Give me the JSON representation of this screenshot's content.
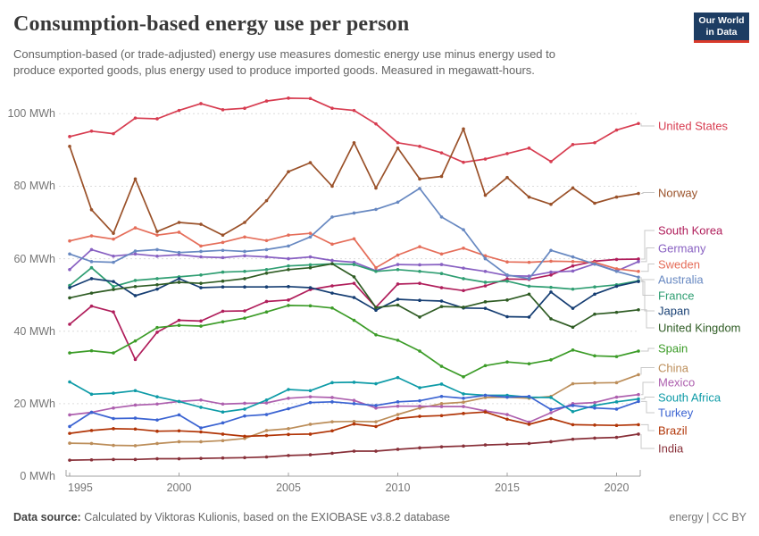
{
  "header": {
    "title": "Consumption-based energy use per person",
    "subtitle": "Consumption-based (or trade-adjusted) energy use measures domestic energy use minus energy used to produce exported goods, plus energy used to produce imported goods. Measured in megawatt-hours.",
    "logo": {
      "line1": "Our World",
      "line2": "in Data",
      "bg_color": "#1d3d63",
      "accent_color": "#d93a2b"
    }
  },
  "footer": {
    "datasource_label": "Data source:",
    "datasource_text": " Calculated by Viktoras Kulionis, based on the EXIOBASE v3.8.2 database",
    "right_text": "energy | CC BY"
  },
  "chart_data": {
    "type": "line",
    "title": "Consumption-based energy use per person",
    "unit": "MWh",
    "x": [
      1995,
      1996,
      1997,
      1998,
      1999,
      2000,
      2001,
      2002,
      2003,
      2004,
      2005,
      2006,
      2007,
      2008,
      2009,
      2010,
      2011,
      2012,
      2013,
      2014,
      2015,
      2016,
      2017,
      2018,
      2019,
      2020,
      2021
    ],
    "x_ticks": [
      1995,
      2000,
      2005,
      2010,
      2015,
      2020
    ],
    "y_ticks": [
      0,
      20,
      40,
      60,
      80,
      100
    ],
    "y_tick_suffix": " MWh",
    "ylim": [
      0,
      105
    ],
    "grid": "dashed-horizontal",
    "legend_position": "right-of-lines",
    "series": [
      {
        "name": "United States",
        "color": "#d73c50",
        "values": [
          93.7,
          95.2,
          94.5,
          98.8,
          98.6,
          100.9,
          102.8,
          101.1,
          101.5,
          103.5,
          104.3,
          104.2,
          101.5,
          100.9,
          97.2,
          92.0,
          91.0,
          89.2,
          86.6,
          87.5,
          89.0,
          90.5,
          86.8,
          91.5,
          92.0,
          95.5,
          97.3
        ]
      },
      {
        "name": "Norway",
        "color": "#9a5129",
        "values": [
          91.0,
          73.5,
          67.0,
          82.0,
          67.5,
          70.0,
          69.5,
          66.5,
          70.0,
          76.0,
          84.0,
          86.5,
          80.0,
          92.0,
          79.5,
          90.5,
          82.0,
          82.7,
          95.8,
          77.5,
          82.4,
          77.0,
          75.0,
          79.5,
          75.3,
          77.0,
          78.0
        ]
      },
      {
        "name": "South Korea",
        "color": "#b01e5b",
        "values": [
          41.9,
          46.9,
          45.3,
          32.2,
          39.7,
          43.0,
          42.8,
          45.5,
          45.6,
          48.2,
          48.6,
          51.5,
          52.5,
          53.2,
          46.6,
          53.0,
          53.2,
          52.0,
          51.2,
          52.5,
          54.4,
          54.3,
          55.5,
          58.0,
          59.3,
          59.8,
          59.9
        ]
      },
      {
        "name": "Germany",
        "color": "#8860c2",
        "values": [
          57.0,
          62.5,
          60.7,
          61.3,
          60.7,
          61.1,
          60.5,
          60.3,
          60.8,
          60.5,
          60.0,
          60.5,
          59.5,
          59.0,
          56.7,
          58.4,
          58.3,
          58.4,
          57.4,
          56.5,
          55.3,
          55.2,
          56.3,
          56.6,
          58.6,
          56.6,
          59.2
        ]
      },
      {
        "name": "Sweden",
        "color": "#e56e5a",
        "values": [
          64.9,
          66.3,
          65.4,
          68.5,
          66.5,
          67.3,
          63.5,
          64.5,
          66.0,
          65.0,
          66.5,
          67.0,
          64.0,
          65.5,
          57.5,
          61.0,
          63.3,
          61.3,
          62.9,
          60.8,
          59.1,
          59.0,
          59.3,
          59.2,
          59.0,
          57.2,
          56.5
        ]
      },
      {
        "name": "Australia",
        "color": "#6788c1",
        "values": [
          61.3,
          59.2,
          59.0,
          62.1,
          62.5,
          61.7,
          62.0,
          62.3,
          62.0,
          62.5,
          63.5,
          66.0,
          71.5,
          72.6,
          73.6,
          75.6,
          79.4,
          71.5,
          68.0,
          60.0,
          55.5,
          54.5,
          62.3,
          60.5,
          58.5,
          56.5,
          54.9
        ]
      },
      {
        "name": "France",
        "color": "#2f9e72",
        "values": [
          52.6,
          57.5,
          52.3,
          54.0,
          54.5,
          55.0,
          55.5,
          56.3,
          56.5,
          57.0,
          58.0,
          58.3,
          58.6,
          58.4,
          56.5,
          57.0,
          56.5,
          55.9,
          54.5,
          53.5,
          53.8,
          52.4,
          52.1,
          51.6,
          52.2,
          52.8,
          53.9
        ]
      },
      {
        "name": "Japan",
        "color": "#153d72",
        "values": [
          52.0,
          54.5,
          53.7,
          49.8,
          51.6,
          54.5,
          52.0,
          52.2,
          52.2,
          52.2,
          52.3,
          52.0,
          50.5,
          49.3,
          45.8,
          48.8,
          48.5,
          48.3,
          46.4,
          46.3,
          44.0,
          43.9,
          50.8,
          46.3,
          50.2,
          52.4,
          53.7
        ]
      },
      {
        "name": "United Kingdom",
        "color": "#2f5c24",
        "values": [
          49.2,
          50.5,
          51.5,
          52.3,
          52.8,
          53.5,
          53.2,
          53.8,
          54.5,
          56.0,
          57.0,
          57.5,
          58.6,
          55.0,
          46.5,
          47.2,
          43.9,
          46.8,
          46.6,
          48.1,
          48.6,
          50.2,
          43.4,
          41.1,
          44.7,
          45.2,
          45.9
        ]
      },
      {
        "name": "Spain",
        "color": "#3c9c28",
        "values": [
          34.0,
          34.6,
          34.0,
          37.3,
          41.0,
          41.6,
          41.4,
          42.6,
          43.6,
          45.3,
          47.1,
          47.0,
          46.4,
          43.0,
          39.0,
          37.5,
          34.5,
          30.3,
          27.4,
          30.5,
          31.5,
          31.0,
          32.1,
          34.8,
          33.2,
          33.0,
          34.5
        ]
      },
      {
        "name": "China",
        "color": "#bc8e5a",
        "values": [
          9.1,
          9.0,
          8.5,
          8.4,
          9.0,
          9.5,
          9.5,
          9.8,
          10.4,
          12.6,
          13.1,
          14.3,
          15.0,
          15.1,
          15.0,
          17.0,
          18.8,
          20.0,
          20.4,
          21.7,
          21.8,
          21.5,
          22.0,
          25.5,
          25.7,
          25.8,
          28.0
        ]
      },
      {
        "name": "Mexico",
        "color": "#ad5fae",
        "values": [
          16.9,
          17.6,
          18.8,
          19.6,
          19.9,
          20.6,
          21.0,
          19.9,
          20.1,
          20.2,
          21.5,
          21.9,
          21.7,
          20.9,
          18.8,
          19.3,
          19.3,
          19.2,
          19.2,
          18.0,
          17.0,
          14.9,
          17.5,
          20.0,
          20.3,
          21.8,
          22.5
        ]
      },
      {
        "name": "South Africa",
        "color": "#0e9ba7",
        "values": [
          26.0,
          22.6,
          22.9,
          23.6,
          21.9,
          20.6,
          19.0,
          17.7,
          18.5,
          21.0,
          23.9,
          23.6,
          25.8,
          25.9,
          25.5,
          27.2,
          24.4,
          25.4,
          22.7,
          22.3,
          22.3,
          21.8,
          21.7,
          17.8,
          19.5,
          20.5,
          21.3
        ]
      },
      {
        "name": "Turkey",
        "color": "#3a63d2",
        "values": [
          13.7,
          17.6,
          15.9,
          16.0,
          15.5,
          16.9,
          13.3,
          14.7,
          16.6,
          17.0,
          18.6,
          20.3,
          20.5,
          20.0,
          19.5,
          20.5,
          20.8,
          22.0,
          21.5,
          22.3,
          21.8,
          22.0,
          18.4,
          19.5,
          18.8,
          18.5,
          20.6
        ]
      },
      {
        "name": "Brazil",
        "color": "#b13507",
        "values": [
          11.8,
          12.6,
          13.1,
          13.0,
          12.4,
          12.5,
          12.2,
          11.6,
          11.0,
          11.2,
          11.5,
          11.6,
          12.5,
          14.4,
          13.7,
          15.9,
          16.5,
          16.7,
          17.3,
          17.7,
          15.7,
          14.3,
          15.9,
          14.2,
          14.1,
          14.0,
          14.2
        ]
      },
      {
        "name": "India",
        "color": "#883039",
        "values": [
          4.4,
          4.5,
          4.6,
          4.6,
          4.8,
          4.8,
          4.9,
          5.0,
          5.1,
          5.3,
          5.7,
          5.9,
          6.3,
          6.9,
          6.9,
          7.4,
          7.8,
          8.1,
          8.3,
          8.6,
          8.8,
          9.0,
          9.5,
          10.2,
          10.5,
          10.7,
          11.6
        ]
      }
    ]
  }
}
